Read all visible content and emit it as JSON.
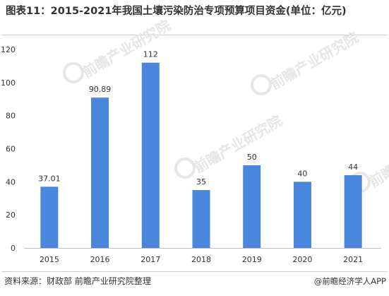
{
  "title": "图表11：2015-2021年我国土壤污染防治专项预算项目资金(单位：亿元)",
  "source": "资料来源：财政部 前瞻产业研究院整理",
  "brand": "@前瞻经济学人APP",
  "watermark_text": "前瞻产业研究院",
  "colors": {
    "bar": "#4a86dc",
    "axis": "#bfbfbf",
    "text": "#333333",
    "watermark": "#e6e6e6"
  },
  "chart_data": {
    "type": "bar",
    "categories": [
      "2015",
      "2016",
      "2017",
      "2018",
      "2019",
      "2020",
      "2021"
    ],
    "values": [
      37.01,
      90.89,
      112,
      35,
      50,
      40,
      44
    ],
    "data_labels": [
      "37.01",
      "90.89",
      "112",
      "35",
      "50",
      "40",
      "44"
    ],
    "ylim": [
      0,
      120
    ],
    "yticks": [
      0,
      20,
      40,
      60,
      80,
      100,
      120
    ],
    "grid": false,
    "legend": "none"
  }
}
